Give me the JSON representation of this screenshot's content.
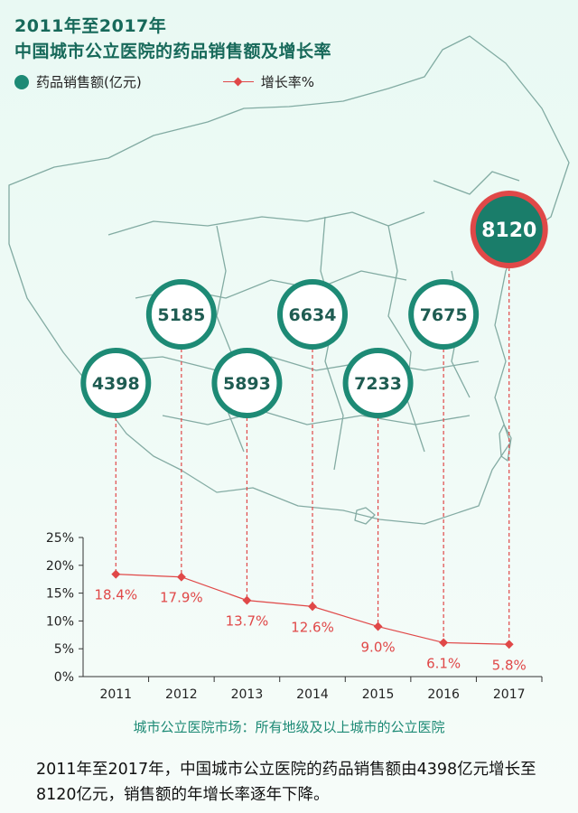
{
  "title_line1": "2011年至2017年",
  "title_line2": "中国城市公立医院的药品销售额及增长率",
  "legend": {
    "sales": "药品销售额(亿元)",
    "growth": "增长率%"
  },
  "colors": {
    "teal": "#1d8a75",
    "red": "#e04848",
    "highlight_fill": "#1a7d6a",
    "highlight_ring": "#e04848"
  },
  "footnote": "城市公立医院市场：所有地级及以上城市的公立医院",
  "description": "2011年至2017年，中国城市公立医院的药品销售额由4398亿元增长至8120亿元，销售额的年增长率逐年下降。",
  "chart_data": {
    "type": "line",
    "categories": [
      "2011",
      "2012",
      "2013",
      "2014",
      "2015",
      "2016",
      "2017"
    ],
    "series": [
      {
        "name": "药品销售额(亿元)",
        "values": [
          4398,
          5185,
          5893,
          6634,
          7233,
          7675,
          8120
        ]
      },
      {
        "name": "增长率%",
        "values": [
          18.4,
          17.9,
          13.7,
          12.6,
          9.0,
          6.1,
          5.8
        ]
      }
    ],
    "growth_labels": [
      "18.4%",
      "17.9%",
      "13.7%",
      "12.6%",
      "9.0%",
      "6.1%",
      "5.8%"
    ],
    "y_ticks": [
      "0%",
      "5%",
      "10%",
      "15%",
      "20%",
      "25%"
    ],
    "ylim": [
      0,
      25
    ]
  }
}
